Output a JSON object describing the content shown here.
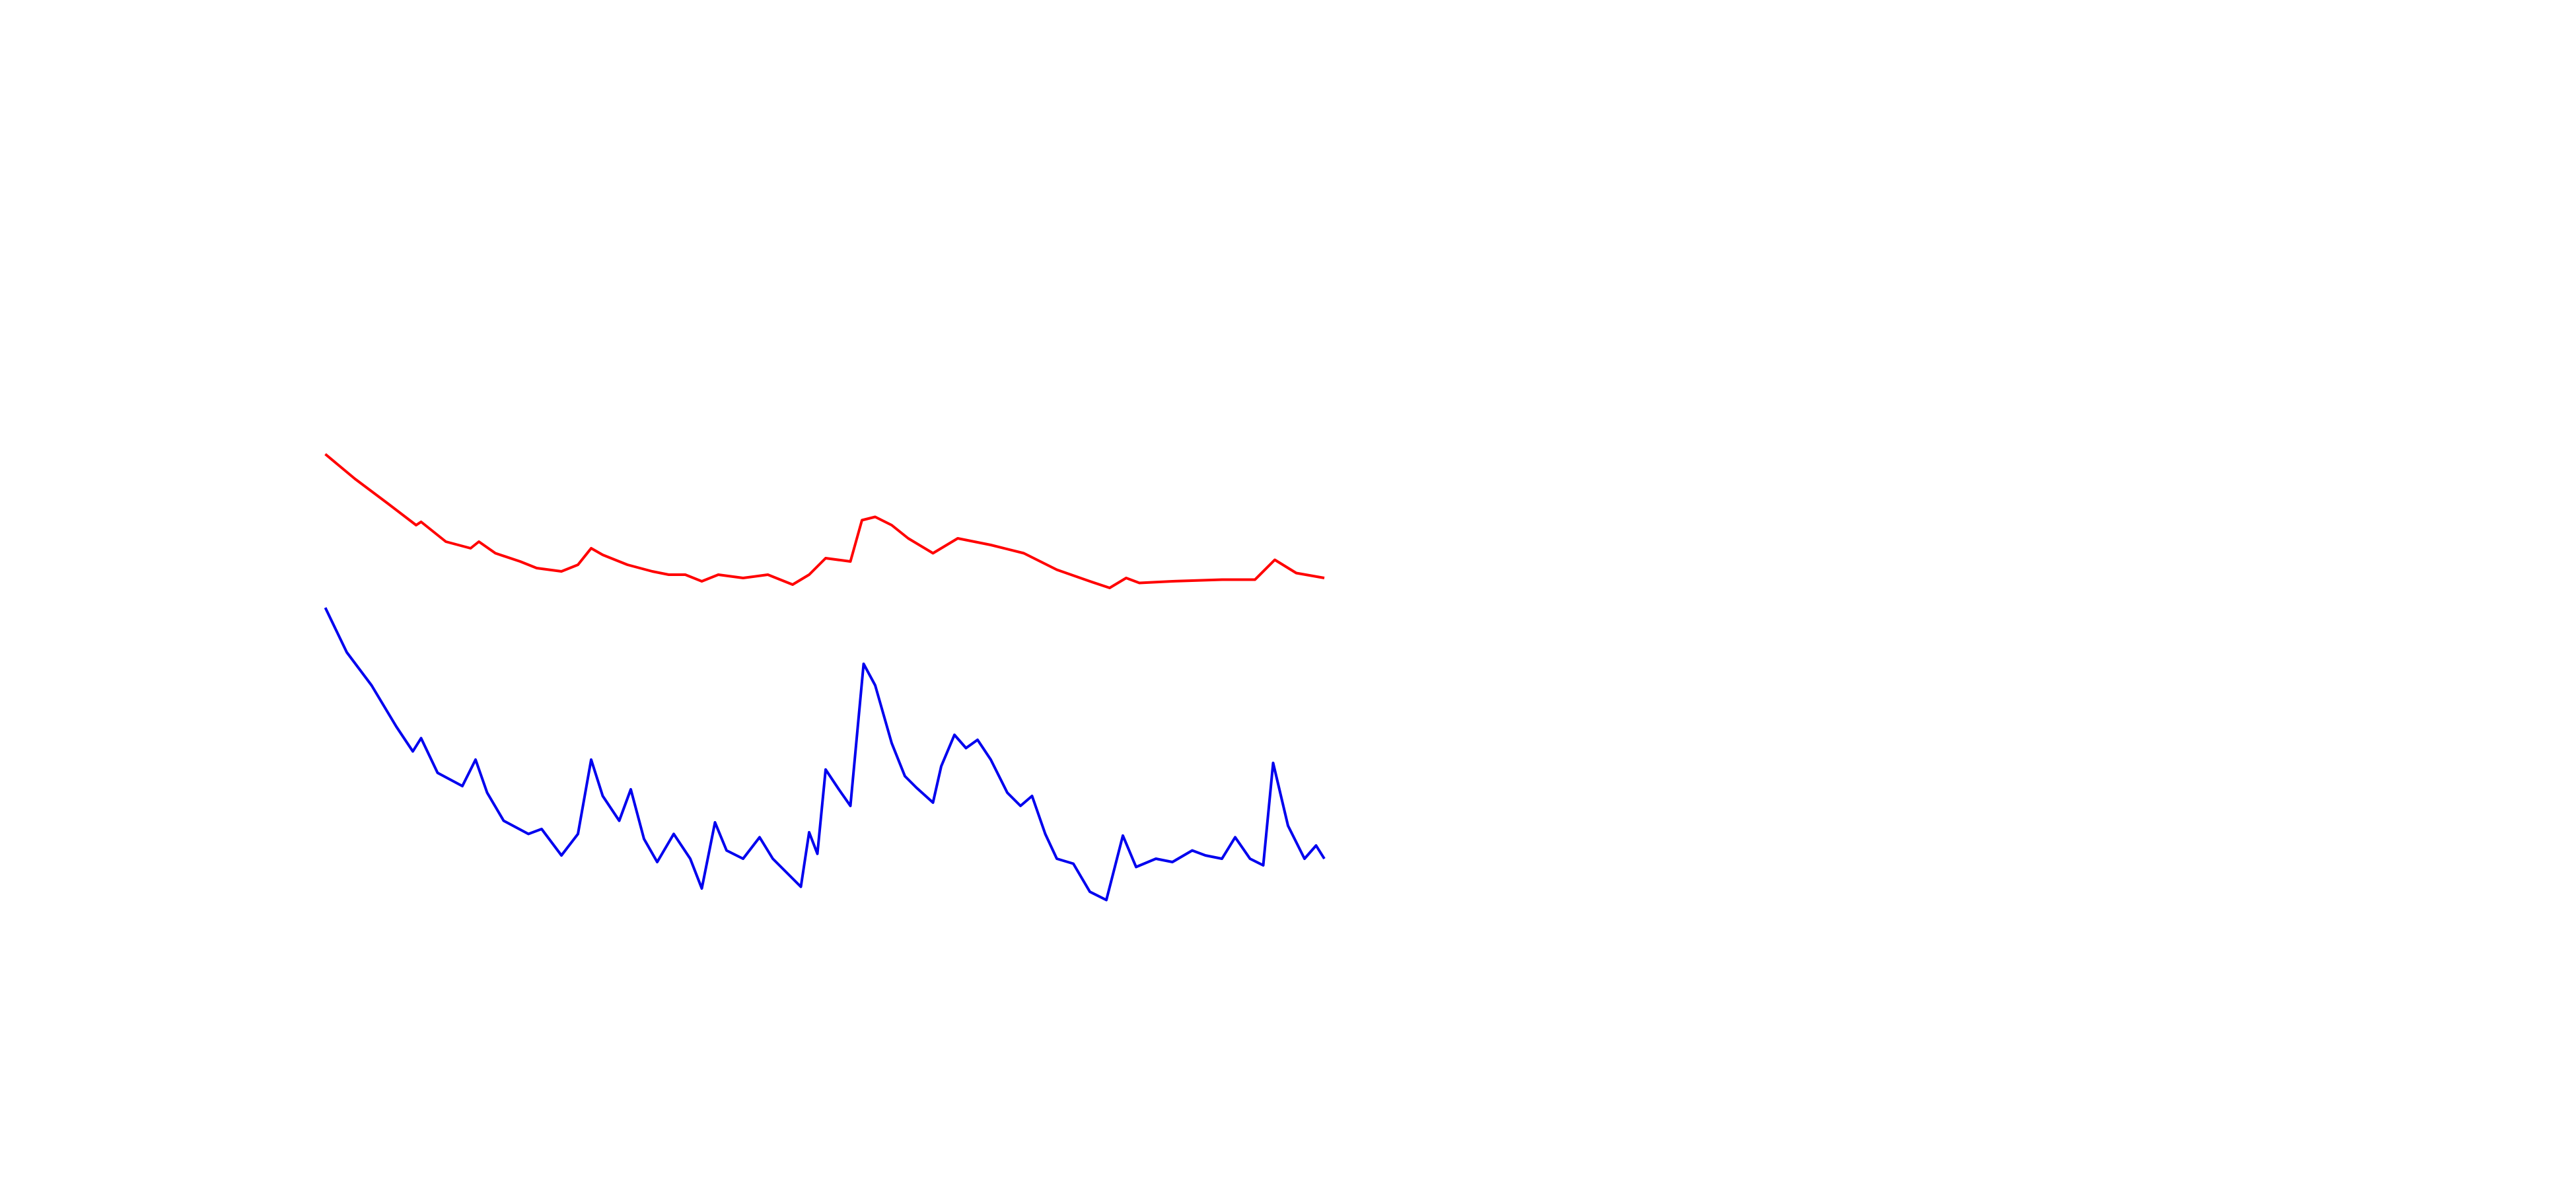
{
  "chart_data": {
    "type": "line",
    "xlim": [
      0,
      1560
    ],
    "ylim": [
      0,
      720
    ],
    "series": [
      {
        "color": "#ff0000",
        "x": [
          197,
          215,
          235,
          252,
          255,
          270,
          285,
          290,
          300,
          315,
          325,
          340,
          350,
          358,
          365,
          380,
          395,
          405,
          415,
          425,
          435,
          450,
          465,
          480,
          490,
          500,
          515,
          522,
          530,
          540,
          550,
          565,
          580,
          600,
          620,
          640,
          660,
          672,
          682,
          690,
          710,
          740,
          760,
          772,
          785,
          802
        ],
        "values": [
          445,
          430,
          415,
          402,
          404,
          392,
          388,
          392,
          385,
          380,
          376,
          374,
          378,
          388,
          384,
          378,
          374,
          372,
          372,
          368,
          372,
          370,
          372,
          366,
          372,
          382,
          380,
          405,
          407,
          402,
          394,
          385,
          394,
          390,
          385,
          375,
          368,
          364,
          370,
          367,
          368,
          369,
          369,
          381,
          373,
          370
        ]
      },
      {
        "color": "#0000ee",
        "x": [
          197,
          210,
          225,
          240,
          250,
          255,
          265,
          280,
          288,
          295,
          305,
          320,
          328,
          340,
          350,
          358,
          365,
          375,
          382,
          390,
          398,
          408,
          418,
          425,
          433,
          440,
          450,
          460,
          468,
          480,
          485,
          490,
          495,
          500,
          508,
          515,
          523,
          530,
          540,
          548,
          555,
          565,
          570,
          578,
          585,
          592,
          600,
          610,
          618,
          625,
          633,
          640,
          650,
          660,
          670,
          680,
          688,
          700,
          710,
          722,
          730,
          740,
          748,
          757,
          765,
          771,
          780,
          790,
          797,
          802
        ],
        "values": [
          352,
          325,
          305,
          280,
          265,
          273,
          252,
          244,
          260,
          240,
          223,
          215,
          218,
          202,
          215,
          260,
          238,
          223,
          242,
          212,
          198,
          215,
          200,
          182,
          222,
          205,
          200,
          213,
          200,
          188,
          183,
          216,
          203,
          254,
          242,
          232,
          318,
          305,
          270,
          250,
          243,
          234,
          256,
          275,
          267,
          272,
          260,
          240,
          232,
          238,
          215,
          200,
          197,
          180,
          175,
          214,
          195,
          200,
          198,
          205,
          202,
          200,
          213,
          200,
          196,
          258,
          220,
          200,
          208,
          200
        ]
      }
    ]
  }
}
